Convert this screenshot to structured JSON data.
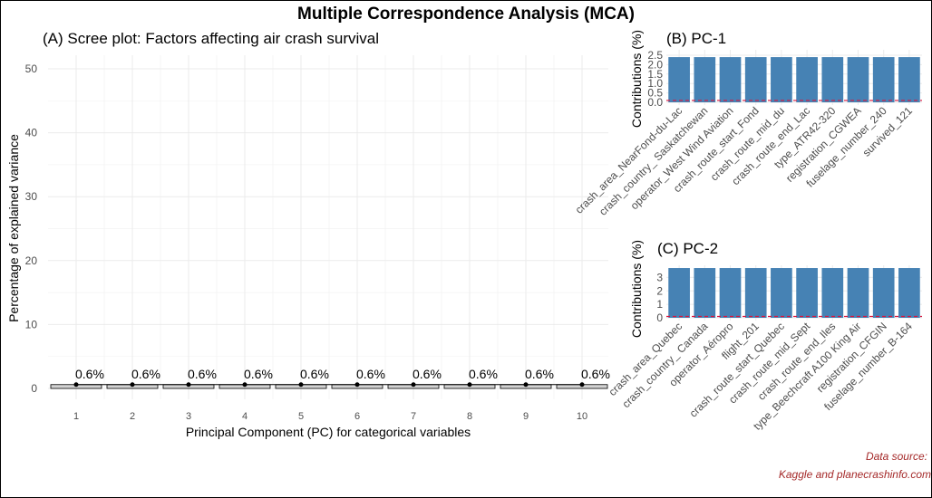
{
  "title": "Multiple Correspondence Analysis (MCA)",
  "source_line1": "Data source:",
  "source_line2": "Kaggle and planecrashinfo.com",
  "colors": {
    "bar": "#4682b4",
    "ref_line": "#dc143c",
    "scree_bar": "#d3d3d3",
    "source": "#a52a2a"
  },
  "chart_data": [
    {
      "id": "A",
      "type": "bar",
      "title": "(A) Scree plot: Factors affecting air crash survival",
      "xlabel": "Principal Component (PC) for categorical variables",
      "ylabel": "Percentage of explained variance",
      "categories": [
        "1",
        "2",
        "3",
        "4",
        "5",
        "6",
        "7",
        "8",
        "9",
        "10"
      ],
      "values": [
        0.6,
        0.6,
        0.6,
        0.6,
        0.6,
        0.6,
        0.6,
        0.6,
        0.6,
        0.6
      ],
      "value_labels": [
        "0.6%",
        "0.6%",
        "0.6%",
        "0.6%",
        "0.6%",
        "0.6%",
        "0.6%",
        "0.6%",
        "0.6%",
        "0.6%"
      ],
      "yticks": [
        0,
        10,
        20,
        30,
        40,
        50
      ],
      "ylim": [
        0,
        52
      ],
      "line_overlay": true,
      "grid": true
    },
    {
      "id": "B",
      "type": "bar",
      "title": "(B) PC-1",
      "ylabel": "Contributions (%)",
      "categories": [
        "crash_area_NearFond-du-Lac",
        "crash_country_ Saskatchewan",
        "operator_West Wind Aviation",
        "crash_route_start_Fond",
        "crash_route_mid_du",
        "crash_route_end_Lac",
        "type_ATR42-320",
        "registration_CGWEA",
        "fuselage_number_240",
        "survived_121"
      ],
      "values": [
        2.4,
        2.4,
        2.4,
        2.4,
        2.4,
        2.4,
        2.4,
        2.4,
        2.4,
        2.4
      ],
      "yticks": [
        0.0,
        0.5,
        1.0,
        1.5,
        2.0,
        2.5
      ],
      "ytick_labels": [
        "0.0",
        "0.5",
        "1.0",
        "1.5",
        "2.0",
        "2.5"
      ],
      "ylim": [
        0,
        2.6
      ],
      "ref_line": 0.1,
      "grid": true
    },
    {
      "id": "C",
      "type": "bar",
      "title": "(C) PC-2",
      "ylabel": "Contributions (%)",
      "categories": [
        "crash_area_Quebec",
        "crash_country_ Canada",
        "operator_Aéropro",
        "flight_201",
        "crash_route_start_Quebec",
        "crash_route_mid_Sept",
        "crash_route_end_Iles",
        "type_Beechcraft A100 King Air",
        "registration_CFGIN",
        "fuselage_number_B-164"
      ],
      "values": [
        3.7,
        3.7,
        3.7,
        3.7,
        3.7,
        3.7,
        3.7,
        3.7,
        3.7,
        3.7
      ],
      "yticks": [
        0,
        1,
        2,
        3
      ],
      "ytick_labels": [
        "0",
        "1",
        "2",
        "3"
      ],
      "ylim": [
        0,
        3.9
      ],
      "ref_line": 0.1,
      "grid": true
    }
  ]
}
